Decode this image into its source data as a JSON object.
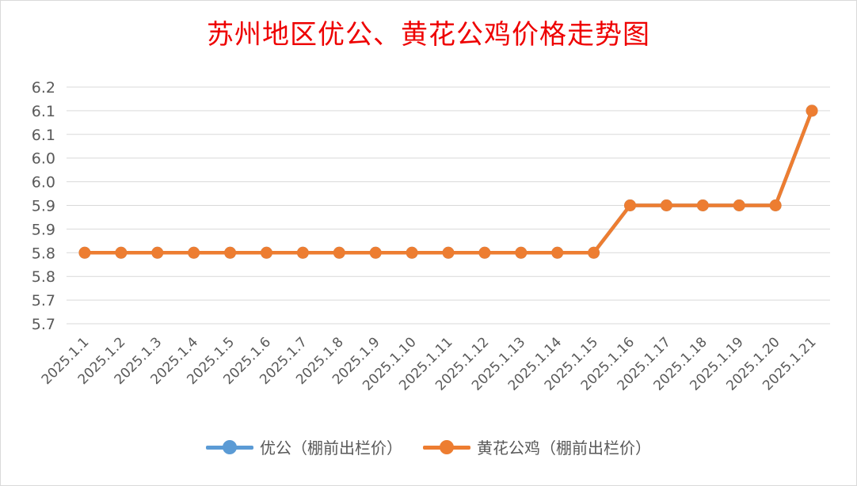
{
  "chart_data": {
    "type": "line",
    "title": "苏州地区优公、黄花公鸡价格走势图",
    "categories": [
      "2025.1.1",
      "2025.1.2",
      "2025.1.3",
      "2025.1.4",
      "2025.1.5",
      "2025.1.6",
      "2025.1.7",
      "2025.1.8",
      "2025.1.9",
      "2025.1.10",
      "2025.1.11",
      "2025.1.12",
      "2025.1.13",
      "2025.1.14",
      "2025.1.15",
      "2025.1.16",
      "2025.1.17",
      "2025.1.18",
      "2025.1.19",
      "2025.1.20",
      "2025.1.21"
    ],
    "series": [
      {
        "name": "优公（棚前出栏价）",
        "color": "#5b9bd5",
        "values": [
          5.8,
          5.8,
          5.8,
          5.8,
          5.8,
          5.8,
          5.8,
          5.8,
          5.8,
          5.8,
          5.8,
          5.8,
          5.8,
          5.8,
          5.8,
          5.9,
          5.9,
          5.9,
          5.9,
          5.9,
          6.1
        ]
      },
      {
        "name": "黄花公鸡（棚前出栏价）",
        "color": "#ed7d31",
        "values": [
          5.8,
          5.8,
          5.8,
          5.8,
          5.8,
          5.8,
          5.8,
          5.8,
          5.8,
          5.8,
          5.8,
          5.8,
          5.8,
          5.8,
          5.8,
          5.9,
          5.9,
          5.9,
          5.9,
          5.9,
          6.1
        ]
      }
    ],
    "yticks": [
      "5.7",
      "5.7",
      "5.8",
      "5.8",
      "5.9",
      "5.9",
      "6.0",
      "6.0",
      "6.1",
      "6.1",
      "6.2"
    ],
    "ylim": [
      5.65,
      6.15
    ],
    "grid": true,
    "legend_position": "bottom",
    "xlabel": "",
    "ylabel": ""
  }
}
